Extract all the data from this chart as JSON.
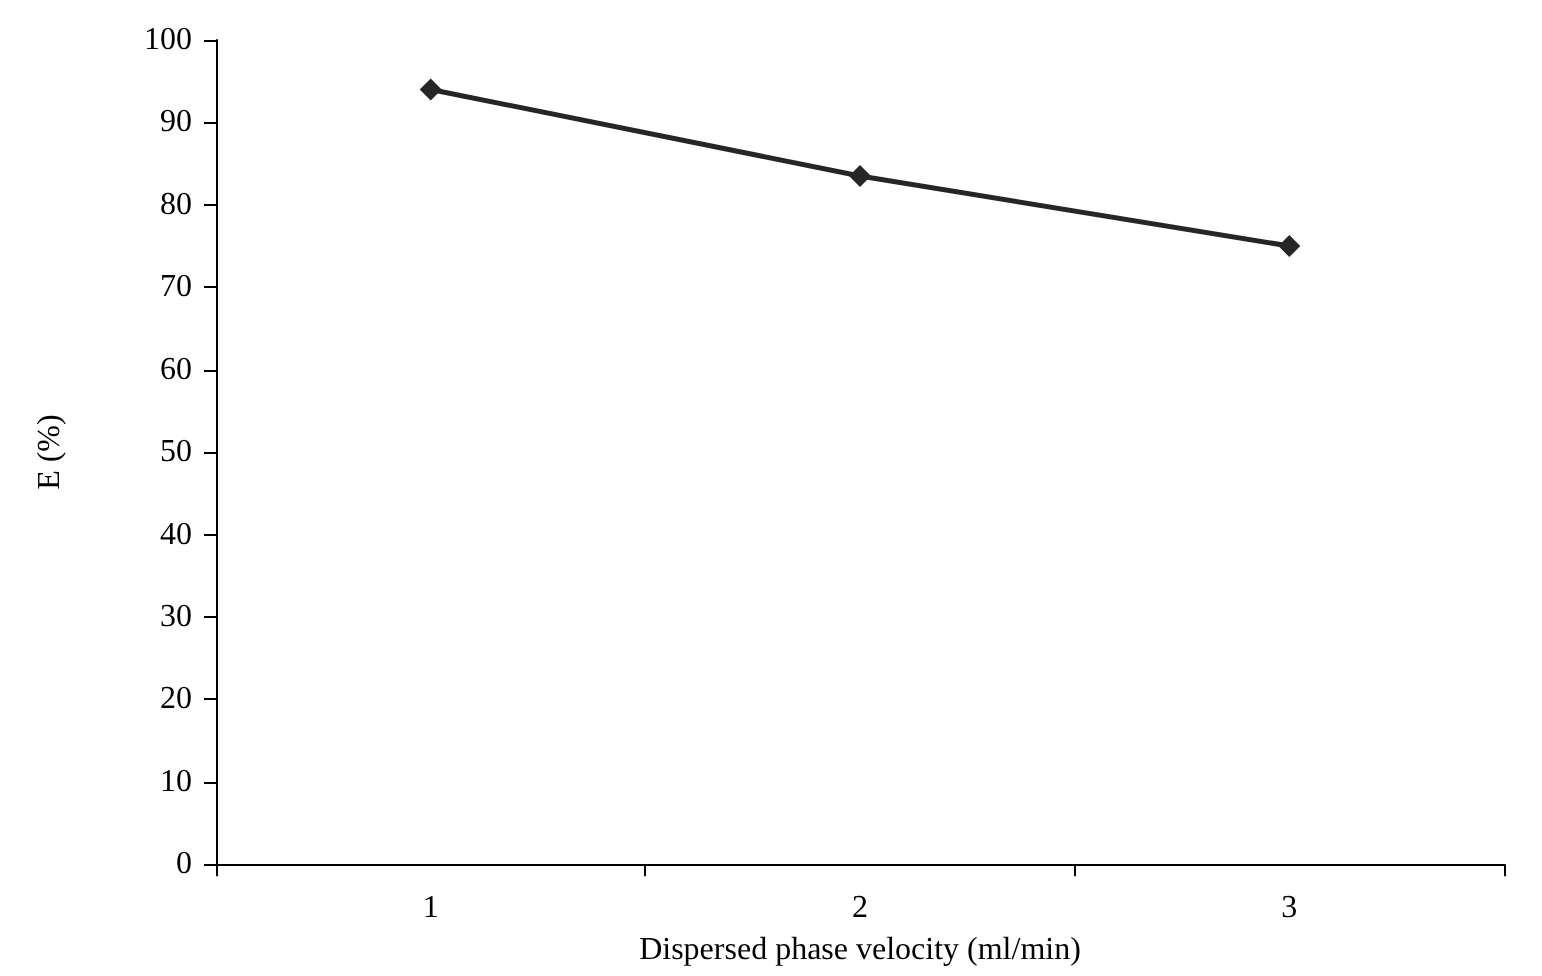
{
  "chart_data": {
    "type": "line",
    "xlabel": "Dispersed phase velocity (ml/min)",
    "ylabel": "E (%)",
    "categories": [
      "1",
      "2",
      "3"
    ],
    "series": [
      {
        "color": "#262626",
        "values": [
          94,
          83.5,
          75
        ]
      }
    ],
    "ylim": [
      0,
      100
    ],
    "yticks": [
      0,
      10,
      20,
      30,
      40,
      50,
      60,
      70,
      80,
      90,
      100
    ],
    "grid": false,
    "marker": "diamond",
    "line_style": "solid"
  }
}
